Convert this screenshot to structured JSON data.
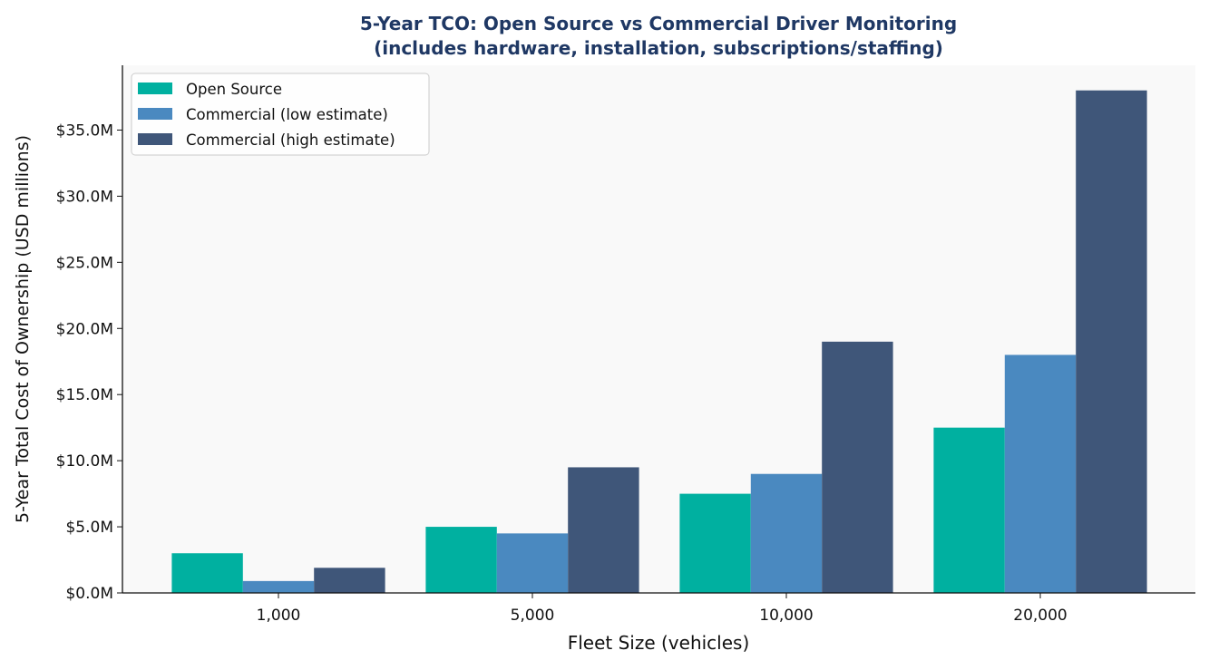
{
  "chart_data": {
    "type": "bar",
    "title": "5-Year TCO: Open Source vs Commercial Driver Monitoring",
    "subtitle": "(includes hardware, installation, subscriptions/staffing)",
    "xlabel": "Fleet Size (vehicles)",
    "ylabel": "5-Year Total Cost of Ownership (USD millions)",
    "categories": [
      "1,000",
      "5,000",
      "10,000",
      "20,000"
    ],
    "series": [
      {
        "name": "Open Source",
        "color": "#00b0a0",
        "values": [
          3.0,
          5.0,
          7.5,
          12.5
        ]
      },
      {
        "name": "Commercial (low estimate)",
        "color": "#4a89c0",
        "values": [
          0.9,
          4.5,
          9.0,
          18.0
        ]
      },
      {
        "name": "Commercial (high estimate)",
        "color": "#3f5679",
        "values": [
          1.9,
          9.5,
          19.0,
          38.0
        ]
      }
    ],
    "ylim": [
      0,
      39.9
    ],
    "yticks": [
      0,
      5,
      10,
      15,
      20,
      25,
      30,
      35
    ],
    "ytick_labels": [
      "$0.0M",
      "$5.0M",
      "$10.0M",
      "$15.0M",
      "$20.0M",
      "$25.0M",
      "$30.0M",
      "$35.0M"
    ],
    "grid": false,
    "legend": "top-left",
    "title_color": "#1f3864",
    "plot_background": "#f9f9f9"
  }
}
